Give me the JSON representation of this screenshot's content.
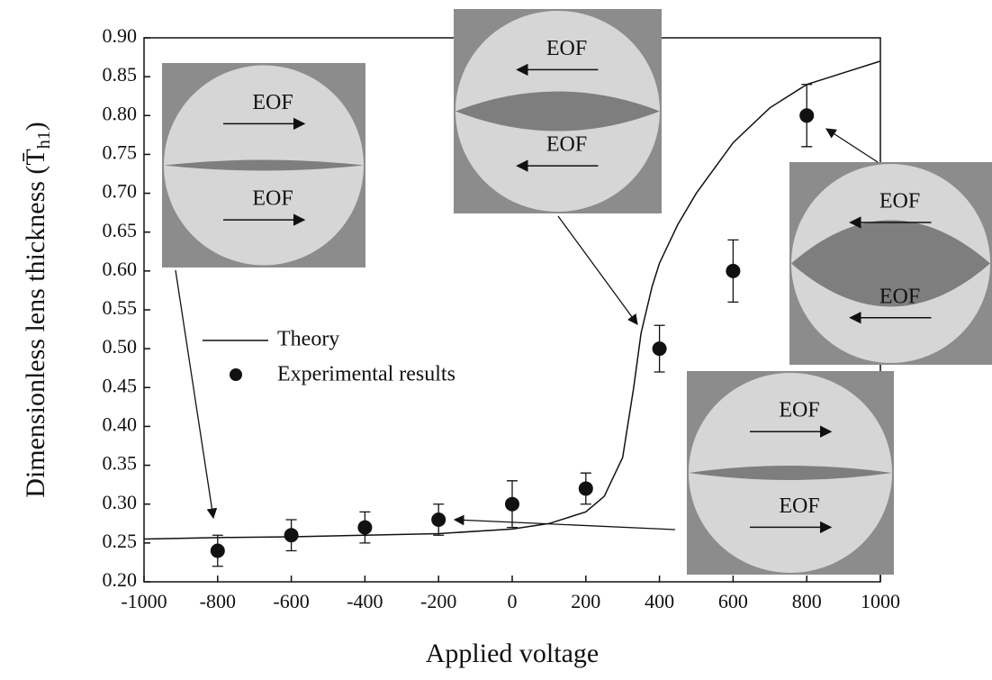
{
  "chart_data": {
    "type": "scatter",
    "xlabel": "Applied voltage",
    "ylabel": "Dimensionless lens thickness (T̄",
    "ylabel_sub": "h1",
    "ylabel_end": ")",
    "xlim": [
      -1000,
      1000
    ],
    "ylim": [
      0.2,
      0.9
    ],
    "xticks": [
      -1000,
      -800,
      -600,
      -400,
      -200,
      0,
      200,
      400,
      600,
      800,
      1000
    ],
    "yticks": [
      {
        "value": 0.2,
        "label": "0.20"
      },
      {
        "value": 0.25,
        "label": "0.25"
      },
      {
        "value": 0.3,
        "label": "0.30"
      },
      {
        "value": 0.35,
        "label": "0.35"
      },
      {
        "value": 0.4,
        "label": "0.40"
      },
      {
        "value": 0.45,
        "label": "0.45"
      },
      {
        "value": 0.5,
        "label": "0.50"
      },
      {
        "value": 0.55,
        "label": "0.55"
      },
      {
        "value": 0.6,
        "label": "0.60"
      },
      {
        "value": 0.65,
        "label": "0.65"
      },
      {
        "value": 0.7,
        "label": "0.70"
      },
      {
        "value": 0.75,
        "label": "0.75"
      },
      {
        "value": 0.8,
        "label": "0.80"
      },
      {
        "value": 0.85,
        "label": "0.85"
      },
      {
        "value": 0.9,
        "label": "0.90"
      }
    ],
    "series": [
      {
        "name": "Theory",
        "color": "#111111",
        "x": [
          -1000,
          -800,
          -600,
          -400,
          -200,
          0,
          100,
          200,
          250,
          300,
          330,
          350,
          380,
          400,
          450,
          500,
          600,
          700,
          800,
          900,
          1000
        ],
        "values": [
          0.255,
          0.257,
          0.258,
          0.26,
          0.262,
          0.268,
          0.275,
          0.29,
          0.31,
          0.36,
          0.45,
          0.52,
          0.58,
          0.61,
          0.66,
          0.7,
          0.765,
          0.81,
          0.84,
          0.855,
          0.87
        ]
      },
      {
        "name": "Experimental results",
        "color": "#111111",
        "x": [
          -800,
          -600,
          -400,
          -200,
          0,
          200,
          400,
          600,
          800
        ],
        "values": [
          0.24,
          0.26,
          0.27,
          0.28,
          0.3,
          0.32,
          0.5,
          0.6,
          0.8
        ],
        "errors": [
          0.02,
          0.02,
          0.02,
          0.02,
          0.03,
          0.02,
          0.03,
          0.04,
          0.04
        ]
      }
    ],
    "annotations": [
      "EOF",
      "EOF",
      "EOF",
      "EOF",
      "EOF",
      "EOF",
      "EOF",
      "EOF"
    ]
  }
}
